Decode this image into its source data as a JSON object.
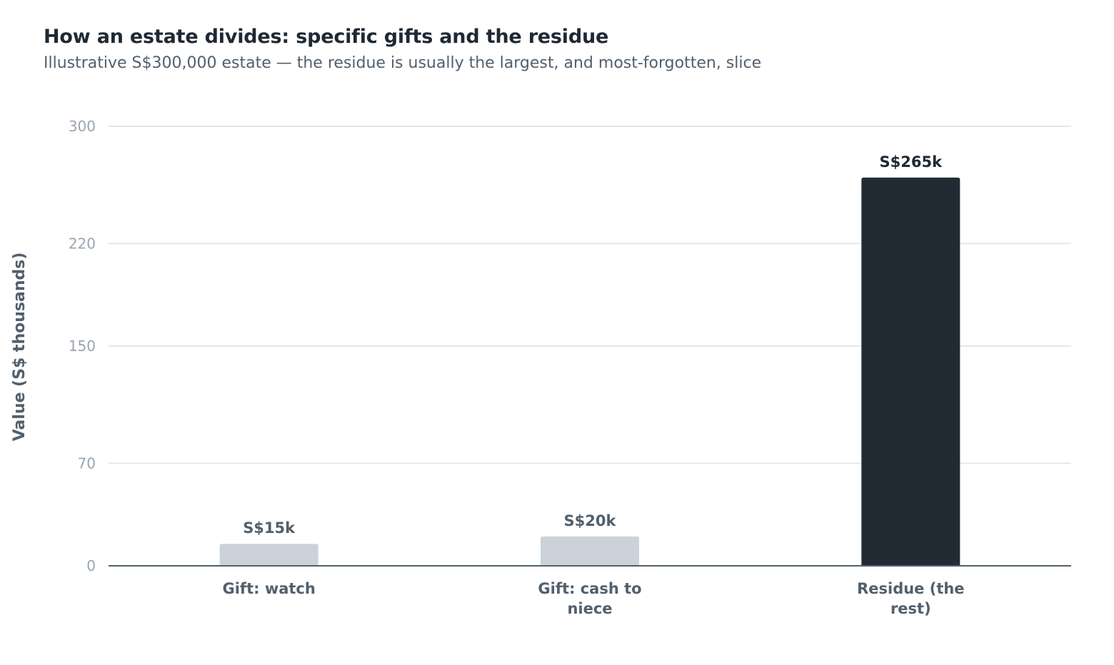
{
  "chart_data": {
    "type": "bar",
    "title": "How an estate divides: specific gifts and the residue",
    "subtitle": "Illustrative S$300,000 estate — the residue is usually the largest, and most-forgotten, slice",
    "ylabel": "Value (S$ thousands)",
    "xlabel": "",
    "ylim": [
      0,
      300
    ],
    "yticks": [
      0,
      70,
      150,
      220,
      300
    ],
    "grid": true,
    "categories": [
      [
        "Gift: watch"
      ],
      [
        "Gift: cash to",
        "niece"
      ],
      [
        "Residue (the",
        "rest)"
      ]
    ],
    "values": [
      15,
      20,
      265
    ],
    "value_labels": [
      "S$15k",
      "S$20k",
      "S$265k"
    ],
    "colors": [
      "#cbd2d9",
      "#cbd2d9",
      "#222b33"
    ],
    "label_colors": [
      "#52606d",
      "#52606d",
      "#1f2933"
    ]
  }
}
